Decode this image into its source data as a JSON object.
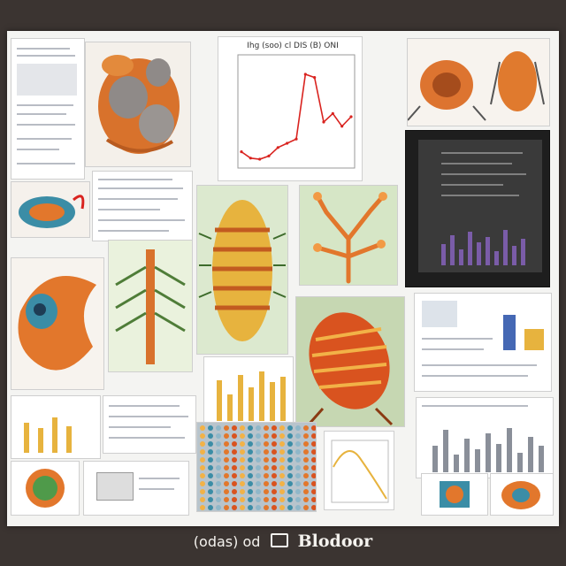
{
  "caption": {
    "prefix": "(odas) od",
    "brand": "Blodoor"
  },
  "chart_data": [
    {
      "type": "line",
      "title": "Ihg (soo) cl DIS (B) ONI",
      "series": [
        {
          "values": [
            12,
            6,
            5,
            8,
            16,
            20,
            24,
            85,
            82,
            40,
            48,
            36,
            45
          ]
        }
      ],
      "ylim": [
        0,
        100
      ],
      "grid": false
    }
  ],
  "colors": {
    "accent_orange": "#e2772c",
    "line_red": "#d9231f",
    "teal": "#3b8da6",
    "gold": "#e7b33e"
  }
}
